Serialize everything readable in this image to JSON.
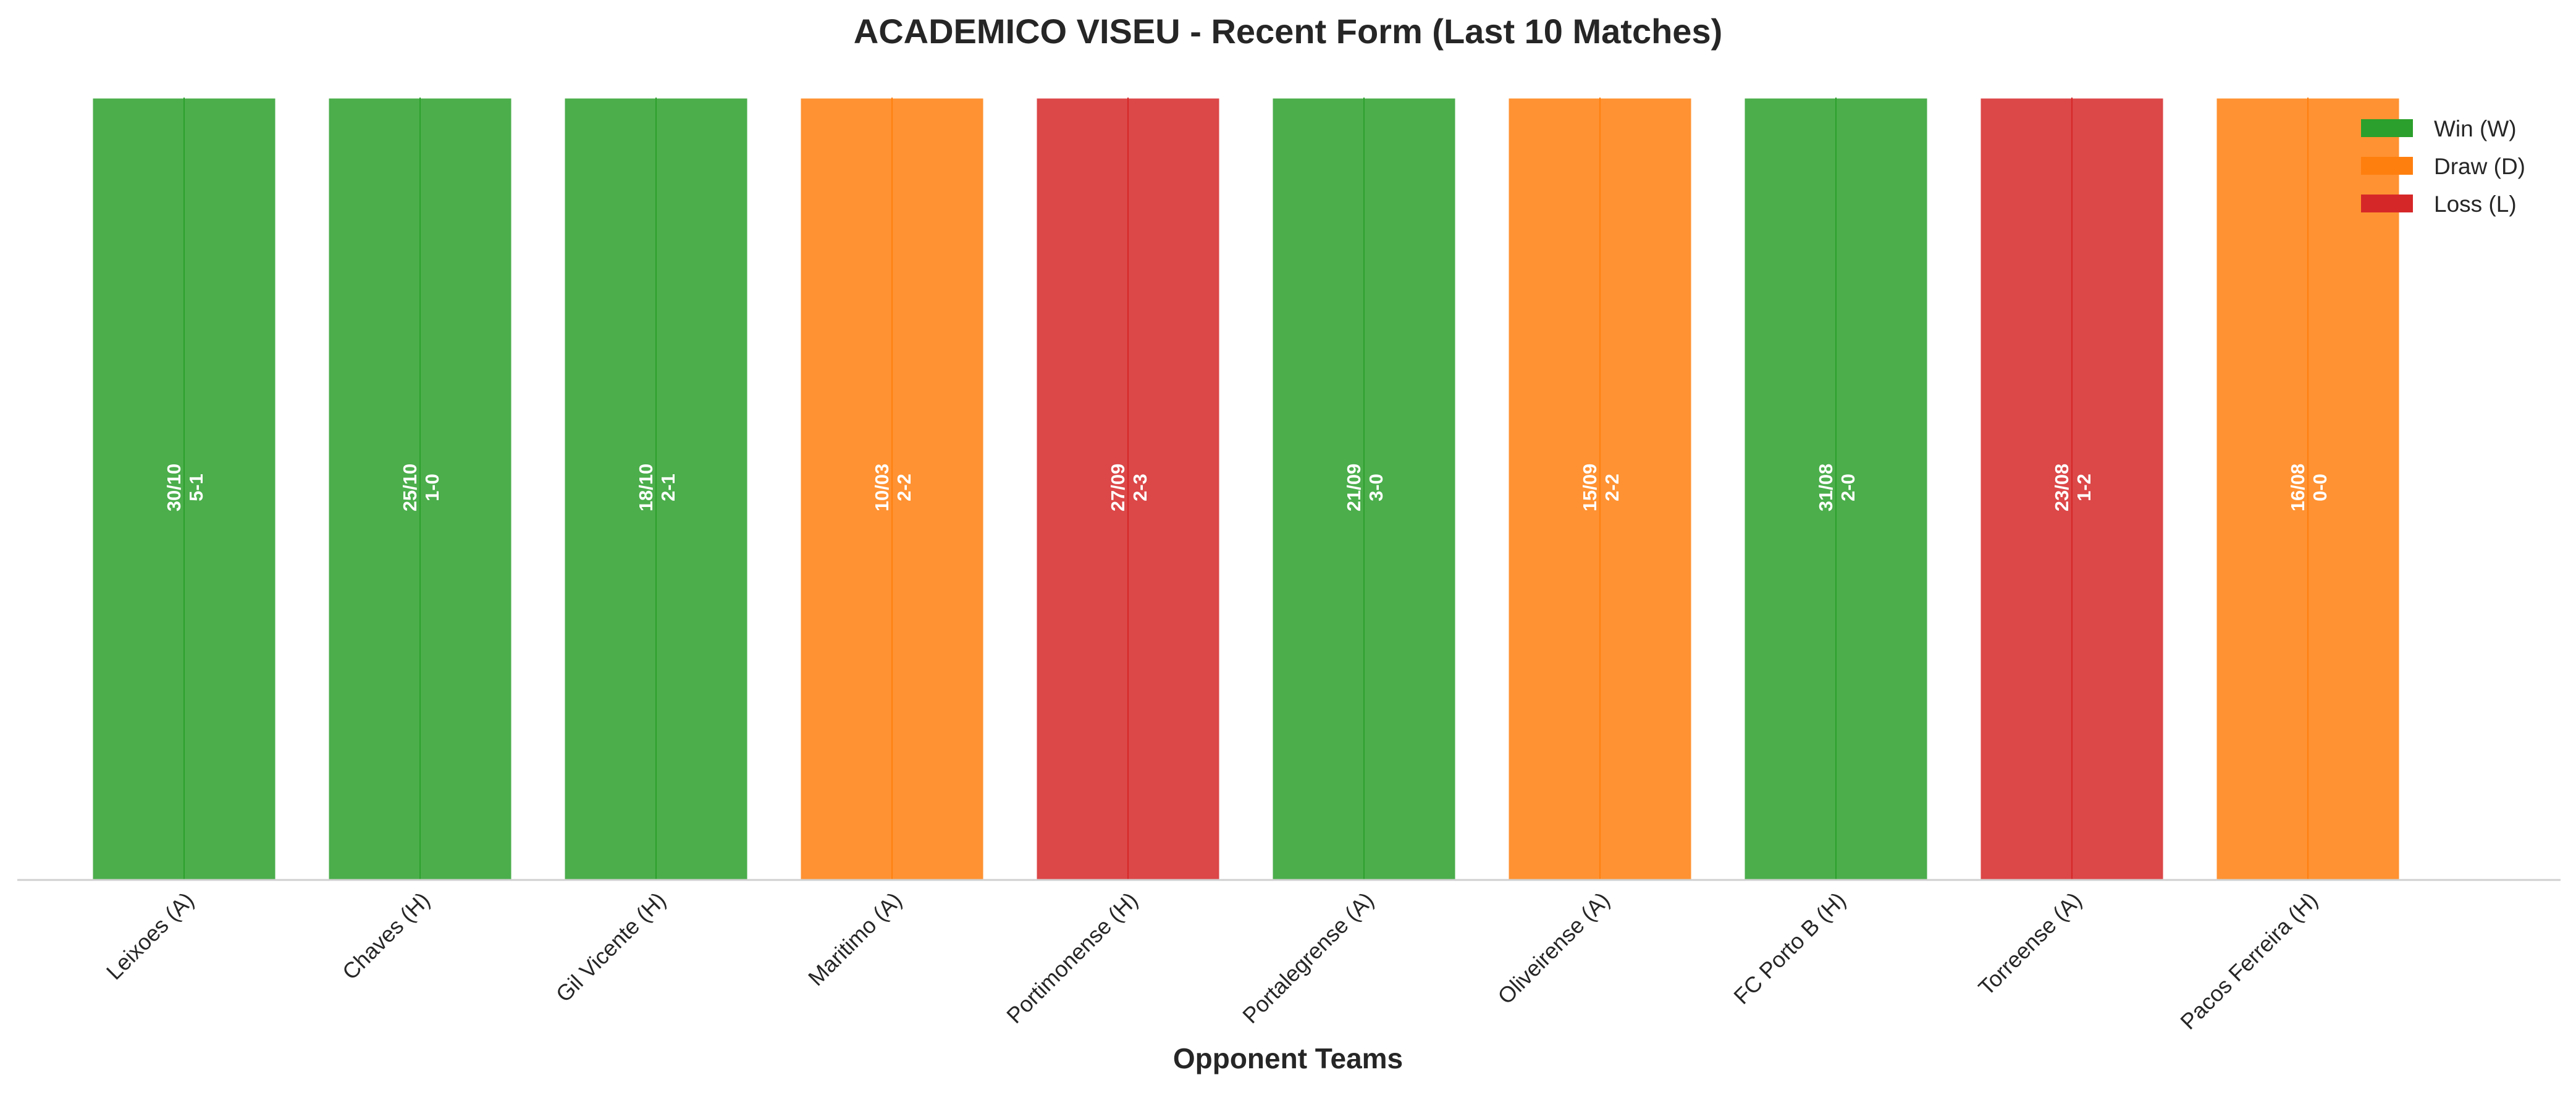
{
  "chart_data": {
    "type": "bar",
    "title": "ACADEMICO VISEU - Recent Form (Last 10 Matches)",
    "xlabel": "Opponent Teams",
    "ylabel": "",
    "categories": [
      "Leixoes (A)",
      "Chaves (H)",
      "Gil Vicente (H)",
      "Maritimo (A)",
      "Portimonense (H)",
      "Portalegrense (A)",
      "Oliveirense (A)",
      "FC Porto B (H)",
      "Torreense (A)",
      "Pacos Ferreira (H)"
    ],
    "values": [
      1,
      1,
      1,
      1,
      1,
      1,
      1,
      1,
      1,
      1
    ],
    "ylim": [
      0,
      1
    ],
    "results": [
      "W",
      "W",
      "W",
      "D",
      "L",
      "W",
      "D",
      "W",
      "L",
      "D"
    ],
    "dates": [
      "30/10",
      "25/10",
      "18/10",
      "10/03",
      "27/09",
      "21/09",
      "15/09",
      "31/08",
      "23/08",
      "16/08"
    ],
    "scores": [
      "5-1",
      "1-0",
      "2-1",
      "2-2",
      "2-3",
      "3-0",
      "2-2",
      "2-0",
      "1-2",
      "0-0"
    ],
    "legend": {
      "position": "top-right",
      "entries": [
        {
          "key": "W",
          "label": "Win (W)",
          "color": "#2ca02c"
        },
        {
          "key": "D",
          "label": "Draw (D)",
          "color": "#ff7f0e"
        },
        {
          "key": "L",
          "label": "Loss (L)",
          "color": "#d62728"
        }
      ]
    },
    "grid": false
  }
}
